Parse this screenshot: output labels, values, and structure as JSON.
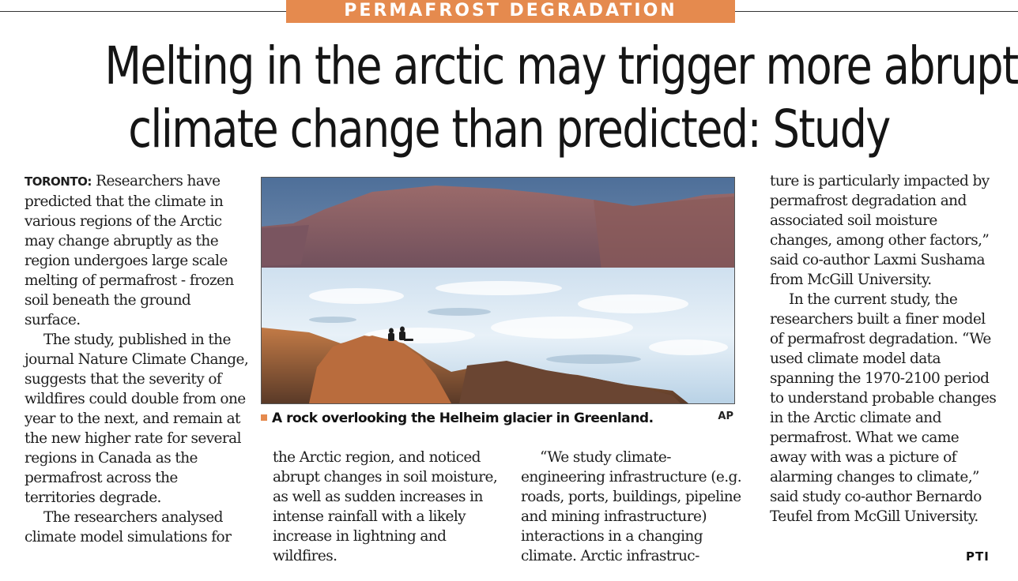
{
  "article": {
    "kicker": "PERMAFROST DEGRADATION",
    "headline_line1": "Melting in the arctic may trigger more abrupt",
    "headline_line2": "climate change than predicted: Study",
    "dateline": "TORONTO:",
    "col1_p1": "Researchers have predicted that the climate in various regions of the Arctic may change abruptly as the region undergoes large scale melting of permafrost - frozen soil beneath the ground surface.",
    "col1_p2": "The study, published in the journal Nature Climate Change, suggests that the severity of wildfires could double from one year to the next, and remain at the new higher rate for several regions in Canada as the permafrost across the territories degrade.",
    "col1_p3": "The researchers analysed climate model simulations for",
    "col2_p1": "the Arctic region, and noticed abrupt changes in soil moisture, as well as sudden increases in intense rainfall with a likely increase in lightning and wildfires.",
    "col3_p1": "“We study climate-engineering infrastructure (e.g. roads, ports, buildings, pipeline and mining infrastructure) interactions in a changing climate. Arctic infrastruc-",
    "col4_p1": "ture is particularly impacted by permafrost degradation and associated soil moisture changes, among other factors,” said co-author Laxmi Sushama from McGill University.",
    "col4_p2": "In the current study, the researchers built a finer model of permafrost degradation. “We used climate model data spanning the 1970-2100 period to understand probable changes in the Arctic climate and permafrost. What we came away with was a picture of alarming changes to climate,” said study co-author Bernardo Teufel from McGill University.",
    "agency": "PTI"
  },
  "photo": {
    "caption": "A rock overlooking the Helheim glacier in Greenland.",
    "credit": "AP"
  },
  "colors": {
    "kicker_bg": "#e58a4e",
    "text": "#1e1e1e"
  }
}
